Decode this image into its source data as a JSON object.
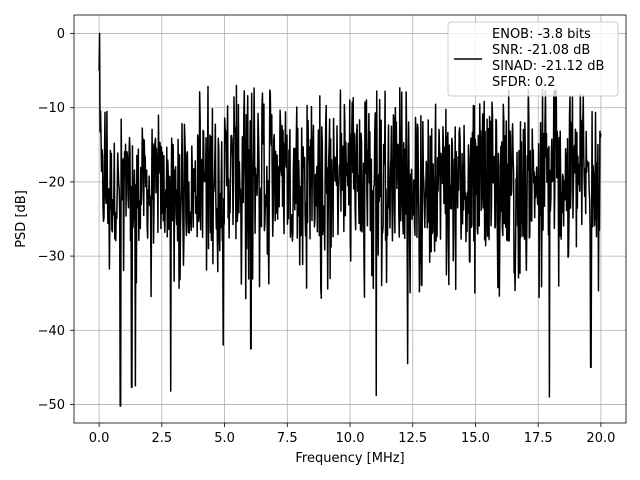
{
  "chart_data": {
    "type": "line",
    "title": "",
    "xlabel": "Frequency [MHz]",
    "ylabel": "PSD [dB]",
    "xlim": [
      -1,
      21
    ],
    "ylim": [
      -52.5,
      2.5
    ],
    "x_ticks": [
      0,
      2.5,
      5,
      7.5,
      10,
      12.5,
      15,
      17.5,
      20
    ],
    "x_tick_labels": [
      "0.0",
      "2.5",
      "5.0",
      "7.5",
      "10.0",
      "12.5",
      "15.0",
      "17.5",
      "20.0"
    ],
    "y_ticks": [
      0,
      -10,
      -20,
      -30,
      -40,
      -50
    ],
    "y_tick_labels": [
      "0",
      "−10",
      "−20",
      "−30",
      "−40",
      "−50"
    ],
    "grid": true,
    "legend_position": "top-right",
    "series": [
      {
        "name": "ENOB: -3.8 bits\nSNR: -21.08 dB\nSINAD: -21.12 dB\nSFDR: 0.2",
        "color": "#000000",
        "x_range": [
          0,
          20
        ],
        "points": 1024,
        "peak": {
          "x": 0,
          "y": 0
        },
        "typical_upper_envelope_db": -11,
        "typical_lower_envelope_db": -28,
        "approx_mean_db": -19,
        "deep_nulls": [
          {
            "x": 0.85,
            "y": -50.2
          },
          {
            "x": 1.3,
            "y": -47.7
          },
          {
            "x": 1.45,
            "y": -47.5
          },
          {
            "x": 2.85,
            "y": -48.2
          },
          {
            "x": 11.05,
            "y": -48.8
          },
          {
            "x": 17.95,
            "y": -49.0
          },
          {
            "x": 12.3,
            "y": -44.5
          },
          {
            "x": 19.6,
            "y": -45.0
          },
          {
            "x": 4.95,
            "y": -42.0
          },
          {
            "x": 6.05,
            "y": -42.5
          }
        ]
      }
    ],
    "legend_lines": [
      "ENOB: -3.8 bits",
      "SNR: -21.08 dB",
      "SINAD: -21.12 dB",
      "SFDR: 0.2"
    ]
  }
}
